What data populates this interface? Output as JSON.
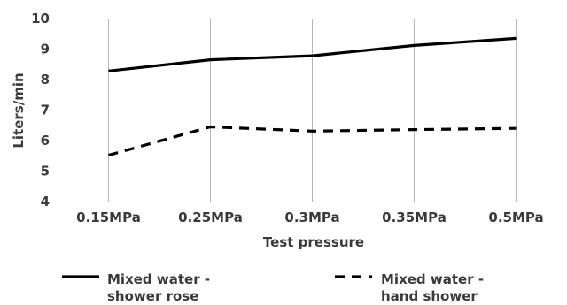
{
  "chart_data": {
    "type": "line",
    "categories": [
      "0.15MPa",
      "0.25MPa",
      "0.3MPa",
      "0.35MPa",
      "0.5MPa"
    ],
    "series": [
      {
        "name_lines": [
          "Mixed water -",
          "shower rose"
        ],
        "values": [
          8.28,
          8.65,
          8.78,
          9.12,
          9.35
        ],
        "style": "solid",
        "color": "#000000"
      },
      {
        "name_lines": [
          "Mixed water -",
          "hand shower"
        ],
        "values": [
          5.52,
          6.45,
          6.31,
          6.36,
          6.4
        ],
        "style": "dashed",
        "color": "#000000"
      }
    ],
    "xlabel": "Test pressure",
    "ylabel": "Liters/min",
    "ylim": [
      4,
      10
    ],
    "yticks": [
      4,
      5,
      6,
      7,
      8,
      9,
      10
    ],
    "grid": "vertical lines at categories",
    "legend_position": "bottom"
  }
}
